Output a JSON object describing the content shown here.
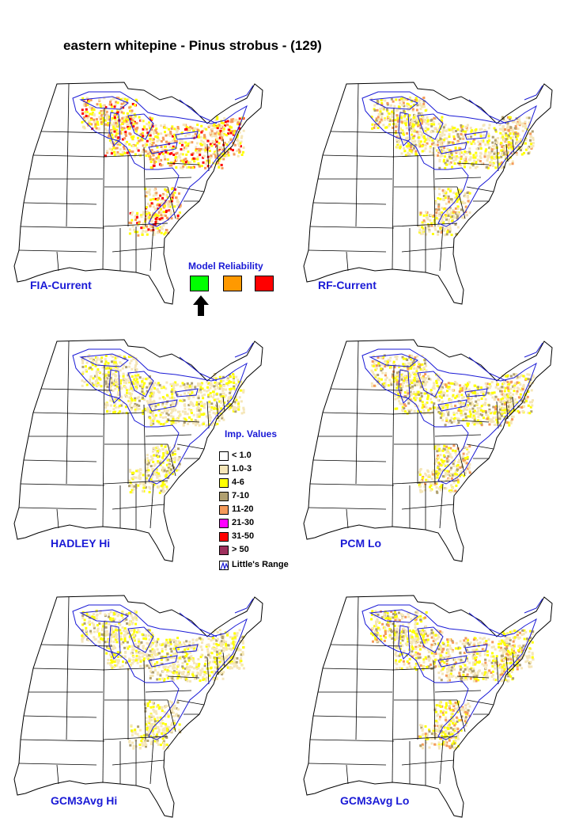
{
  "title": "eastern whitepine - Pinus strobus - (129)",
  "panels": [
    {
      "label": "FIA-Current",
      "intensity": "high"
    },
    {
      "label": "RF-Current",
      "intensity": "medium"
    },
    {
      "label": "HADLEY Hi",
      "intensity": "low"
    },
    {
      "label": "PCM Lo",
      "intensity": "medium"
    },
    {
      "label": "GCM3Avg Hi",
      "intensity": "low"
    },
    {
      "label": "GCM3Avg Lo",
      "intensity": "medium"
    }
  ],
  "model_reliability": {
    "title": "Model Reliability",
    "levels": [
      {
        "color": "#00ff00",
        "selected": true
      },
      {
        "color": "#ff9900",
        "selected": false
      },
      {
        "color": "#ff0000",
        "selected": false
      }
    ]
  },
  "legend": {
    "title": "Imp. Values",
    "items": [
      {
        "label": "< 1.0",
        "color": "#ffffff"
      },
      {
        "label": "1.0-3",
        "color": "#f5e6b8"
      },
      {
        "label": "4-6",
        "color": "#ffff00"
      },
      {
        "label": "7-10",
        "color": "#b0a070"
      },
      {
        "label": "11-20",
        "color": "#f49a5a"
      },
      {
        "label": "21-30",
        "color": "#ff00ff"
      },
      {
        "label": "31-50",
        "color": "#ff0000"
      },
      {
        "label": "> 50",
        "color": "#9e2f5c"
      },
      {
        "label": "Little's Range",
        "color": "#ffffff"
      }
    ]
  },
  "colors": {
    "state_lines": "#000000",
    "range_line": "#1a1ad6",
    "label_text": "#1a1ad6"
  }
}
